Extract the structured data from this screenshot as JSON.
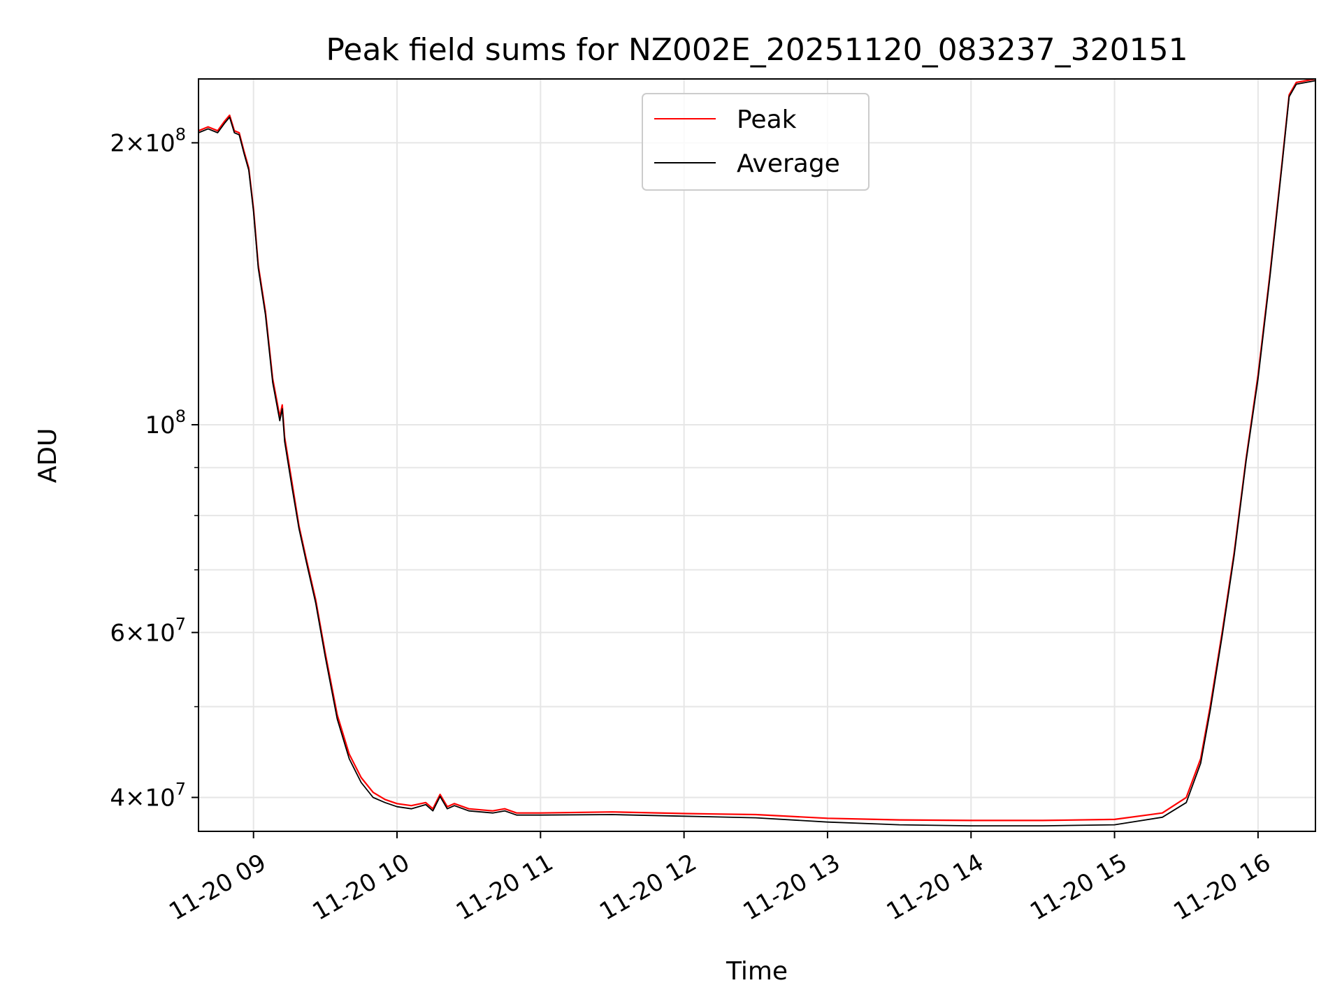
{
  "chart_data": {
    "type": "line",
    "title": "Peak field sums for NZ002E_20251120_083237_320151",
    "xlabel": "Time",
    "ylabel": "ADU",
    "yscale": "log",
    "grid": true,
    "legend_position": "top-center",
    "xlim": [
      "2025-11-20 08:37",
      "2025-11-20 16:24"
    ],
    "ylim": [
      36800000,
      234000000
    ],
    "x_ticks": [
      {
        "value": "2025-11-20 09:00",
        "label": "11-20 09"
      },
      {
        "value": "2025-11-20 10:00",
        "label": "11-20 10"
      },
      {
        "value": "2025-11-20 11:00",
        "label": "11-20 11"
      },
      {
        "value": "2025-11-20 12:00",
        "label": "11-20 12"
      },
      {
        "value": "2025-11-20 13:00",
        "label": "11-20 13"
      },
      {
        "value": "2025-11-20 14:00",
        "label": "11-20 14"
      },
      {
        "value": "2025-11-20 15:00",
        "label": "11-20 15"
      },
      {
        "value": "2025-11-20 16:00",
        "label": "11-20 16"
      }
    ],
    "y_major_ticks": [
      {
        "value": 40000000,
        "coef": "4",
        "exp": "7"
      },
      {
        "value": 60000000,
        "coef": "6",
        "exp": "7"
      },
      {
        "value": 100000000,
        "coef": "",
        "exp": "8"
      },
      {
        "value": 200000000,
        "coef": "2",
        "exp": "8"
      }
    ],
    "y_minor_ticks": [
      50000000,
      70000000,
      80000000,
      90000000
    ],
    "series": [
      {
        "name": "Peak",
        "color": "#ff0000",
        "points": [
          [
            "2025-11-20 08:37",
            206000000
          ],
          [
            "2025-11-20 08:41",
            208000000
          ],
          [
            "2025-11-20 08:45",
            206000000
          ],
          [
            "2025-11-20 08:48",
            211000000
          ],
          [
            "2025-11-20 08:50",
            214000000
          ],
          [
            "2025-11-20 08:52",
            206000000
          ],
          [
            "2025-11-20 08:54",
            205000000
          ],
          [
            "2025-11-20 08:56",
            196000000
          ],
          [
            "2025-11-20 08:58",
            188000000
          ],
          [
            "2025-11-20 09:00",
            170000000
          ],
          [
            "2025-11-20 09:02",
            148000000
          ],
          [
            "2025-11-20 09:05",
            132000000
          ],
          [
            "2025-11-20 09:08",
            112000000
          ],
          [
            "2025-11-20 09:11",
            102000000
          ],
          [
            "2025-11-20 09:12",
            105000000
          ],
          [
            "2025-11-20 09:13",
            97000000
          ],
          [
            "2025-11-20 09:16",
            87000000
          ],
          [
            "2025-11-20 09:19",
            78000000
          ],
          [
            "2025-11-20 09:22",
            72000000
          ],
          [
            "2025-11-20 09:26",
            65000000
          ],
          [
            "2025-11-20 09:30",
            57000000
          ],
          [
            "2025-11-20 09:35",
            49000000
          ],
          [
            "2025-11-20 09:40",
            44500000
          ],
          [
            "2025-11-20 09:45",
            42000000
          ],
          [
            "2025-11-20 09:50",
            40500000
          ],
          [
            "2025-11-20 09:55",
            39800000
          ],
          [
            "2025-11-20 10:00",
            39400000
          ],
          [
            "2025-11-20 10:06",
            39200000
          ],
          [
            "2025-11-20 10:12",
            39500000
          ],
          [
            "2025-11-20 10:15",
            38900000
          ],
          [
            "2025-11-20 10:18",
            40300000
          ],
          [
            "2025-11-20 10:21",
            39100000
          ],
          [
            "2025-11-20 10:24",
            39400000
          ],
          [
            "2025-11-20 10:30",
            38900000
          ],
          [
            "2025-11-20 10:40",
            38700000
          ],
          [
            "2025-11-20 10:45",
            38900000
          ],
          [
            "2025-11-20 10:50",
            38500000
          ],
          [
            "2025-11-20 11:00",
            38500000
          ],
          [
            "2025-11-20 11:30",
            38600000
          ],
          [
            "2025-11-20 12:00",
            38450000
          ],
          [
            "2025-11-20 12:30",
            38350000
          ],
          [
            "2025-11-20 13:00",
            38000000
          ],
          [
            "2025-11-20 13:30",
            37850000
          ],
          [
            "2025-11-20 14:00",
            37800000
          ],
          [
            "2025-11-20 14:30",
            37800000
          ],
          [
            "2025-11-20 15:00",
            37900000
          ],
          [
            "2025-11-20 15:20",
            38500000
          ],
          [
            "2025-11-20 15:30",
            40000000
          ],
          [
            "2025-11-20 15:36",
            44000000
          ],
          [
            "2025-11-20 15:40",
            50000000
          ],
          [
            "2025-11-20 15:45",
            60000000
          ],
          [
            "2025-11-20 15:50",
            73000000
          ],
          [
            "2025-11-20 15:55",
            92000000
          ],
          [
            "2025-11-20 16:00",
            113000000
          ],
          [
            "2025-11-20 16:05",
            145000000
          ],
          [
            "2025-11-20 16:10",
            190000000
          ],
          [
            "2025-11-20 16:13",
            225000000
          ],
          [
            "2025-11-20 16:16",
            232000000
          ],
          [
            "2025-11-20 16:24",
            234000000
          ]
        ]
      },
      {
        "name": "Average",
        "color": "#000000",
        "points": [
          [
            "2025-11-20 08:37",
            205000000
          ],
          [
            "2025-11-20 08:41",
            207000000
          ],
          [
            "2025-11-20 08:45",
            205000000
          ],
          [
            "2025-11-20 08:48",
            210000000
          ],
          [
            "2025-11-20 08:50",
            213000000
          ],
          [
            "2025-11-20 08:52",
            205000000
          ],
          [
            "2025-11-20 08:54",
            204000000
          ],
          [
            "2025-11-20 08:56",
            195000000
          ],
          [
            "2025-11-20 08:58",
            187000000
          ],
          [
            "2025-11-20 09:00",
            169000000
          ],
          [
            "2025-11-20 09:02",
            147000000
          ],
          [
            "2025-11-20 09:05",
            131000000
          ],
          [
            "2025-11-20 09:08",
            111000000
          ],
          [
            "2025-11-20 09:11",
            101000000
          ],
          [
            "2025-11-20 09:12",
            104000000
          ],
          [
            "2025-11-20 09:13",
            96000000
          ],
          [
            "2025-11-20 09:16",
            86000000
          ],
          [
            "2025-11-20 09:19",
            77500000
          ],
          [
            "2025-11-20 09:22",
            71500000
          ],
          [
            "2025-11-20 09:26",
            64500000
          ],
          [
            "2025-11-20 09:30",
            56500000
          ],
          [
            "2025-11-20 09:35",
            48500000
          ],
          [
            "2025-11-20 09:40",
            44000000
          ],
          [
            "2025-11-20 09:45",
            41500000
          ],
          [
            "2025-11-20 09:50",
            40000000
          ],
          [
            "2025-11-20 09:55",
            39500000
          ],
          [
            "2025-11-20 10:00",
            39100000
          ],
          [
            "2025-11-20 10:06",
            38900000
          ],
          [
            "2025-11-20 10:12",
            39300000
          ],
          [
            "2025-11-20 10:15",
            38700000
          ],
          [
            "2025-11-20 10:18",
            40100000
          ],
          [
            "2025-11-20 10:21",
            38900000
          ],
          [
            "2025-11-20 10:24",
            39200000
          ],
          [
            "2025-11-20 10:30",
            38700000
          ],
          [
            "2025-11-20 10:40",
            38500000
          ],
          [
            "2025-11-20 10:45",
            38700000
          ],
          [
            "2025-11-20 10:50",
            38300000
          ],
          [
            "2025-11-20 11:00",
            38300000
          ],
          [
            "2025-11-20 11:30",
            38350000
          ],
          [
            "2025-11-20 12:00",
            38200000
          ],
          [
            "2025-11-20 12:30",
            38050000
          ],
          [
            "2025-11-20 13:00",
            37650000
          ],
          [
            "2025-11-20 13:30",
            37400000
          ],
          [
            "2025-11-20 14:00",
            37300000
          ],
          [
            "2025-11-20 14:30",
            37300000
          ],
          [
            "2025-11-20 15:00",
            37400000
          ],
          [
            "2025-11-20 15:20",
            38100000
          ],
          [
            "2025-11-20 15:30",
            39500000
          ],
          [
            "2025-11-20 15:36",
            43500000
          ],
          [
            "2025-11-20 15:40",
            49500000
          ],
          [
            "2025-11-20 15:45",
            59500000
          ],
          [
            "2025-11-20 15:50",
            72500000
          ],
          [
            "2025-11-20 15:55",
            91500000
          ],
          [
            "2025-11-20 16:00",
            112000000
          ],
          [
            "2025-11-20 16:05",
            144000000
          ],
          [
            "2025-11-20 16:10",
            189000000
          ],
          [
            "2025-11-20 16:13",
            224000000
          ],
          [
            "2025-11-20 16:16",
            231000000
          ],
          [
            "2025-11-20 16:24",
            233000000
          ]
        ]
      }
    ]
  }
}
